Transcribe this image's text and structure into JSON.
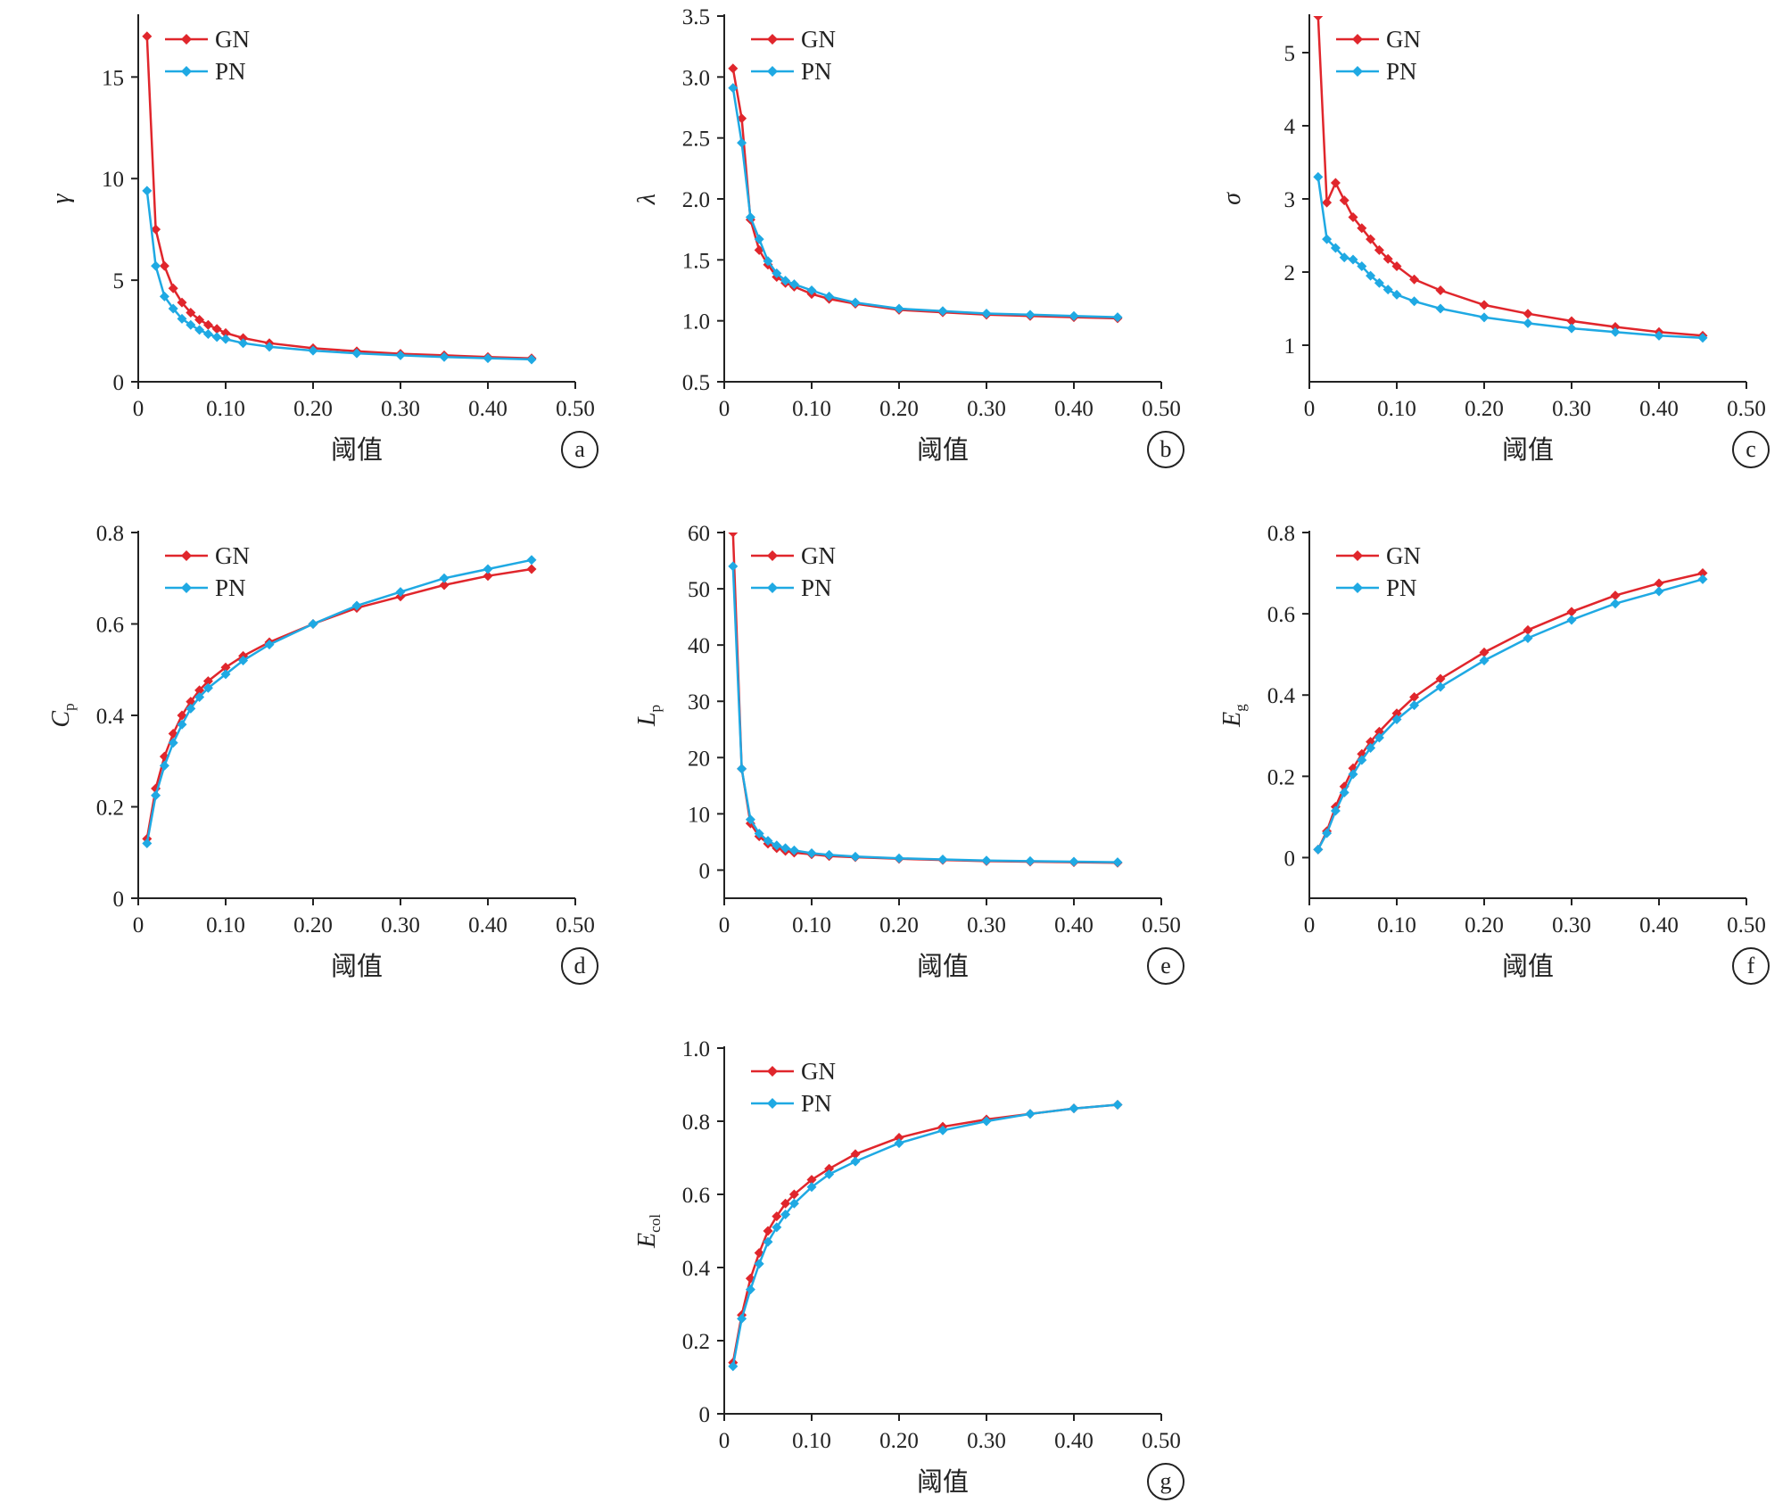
{
  "colors": {
    "GN": "#e0262c",
    "PN": "#1fa9e3",
    "axis": "#222222"
  },
  "chart_data": [
    {
      "id": "a",
      "type": "line",
      "panel_label": "a",
      "ylabel": {
        "main": "γ",
        "sub": ""
      },
      "xlabel": "阈值",
      "xlim": [
        0,
        0.5
      ],
      "ylim": [
        0,
        18
      ],
      "xticks": [
        "0",
        "0.10",
        "0.20",
        "0.30",
        "0.40",
        "0.50"
      ],
      "yticks": [
        "0",
        "5",
        "10",
        "15"
      ],
      "ytick_values": [
        0,
        5,
        10,
        15
      ],
      "series": [
        {
          "name": "GN",
          "color": "#e0262c",
          "x": [
            0.01,
            0.02,
            0.03,
            0.04,
            0.05,
            0.06,
            0.07,
            0.08,
            0.09,
            0.1,
            0.12,
            0.15,
            0.2,
            0.25,
            0.3,
            0.35,
            0.4,
            0.45
          ],
          "y": [
            17.0,
            7.5,
            5.7,
            4.6,
            3.9,
            3.4,
            3.05,
            2.8,
            2.6,
            2.4,
            2.15,
            1.9,
            1.65,
            1.5,
            1.38,
            1.3,
            1.22,
            1.15
          ]
        },
        {
          "name": "PN",
          "color": "#1fa9e3",
          "x": [
            0.01,
            0.02,
            0.03,
            0.04,
            0.05,
            0.06,
            0.07,
            0.08,
            0.09,
            0.1,
            0.12,
            0.15,
            0.2,
            0.25,
            0.3,
            0.35,
            0.4,
            0.45
          ],
          "y": [
            9.4,
            5.7,
            4.2,
            3.6,
            3.1,
            2.8,
            2.55,
            2.35,
            2.2,
            2.1,
            1.9,
            1.72,
            1.53,
            1.4,
            1.3,
            1.22,
            1.16,
            1.1
          ]
        }
      ]
    },
    {
      "id": "b",
      "type": "line",
      "panel_label": "b",
      "ylabel": {
        "main": "λ",
        "sub": ""
      },
      "xlabel": "阈值",
      "xlim": [
        0,
        0.5
      ],
      "ylim": [
        0.5,
        3.5
      ],
      "xticks": [
        "0",
        "0.10",
        "0.20",
        "0.30",
        "0.40",
        "0.50"
      ],
      "yticks": [
        "0.5",
        "1.0",
        "1.5",
        "2.0",
        "2.5",
        "3.0",
        "3.5"
      ],
      "ytick_values": [
        0.5,
        1.0,
        1.5,
        2.0,
        2.5,
        3.0,
        3.5
      ],
      "series": [
        {
          "name": "GN",
          "color": "#e0262c",
          "x": [
            0.01,
            0.02,
            0.03,
            0.04,
            0.05,
            0.06,
            0.07,
            0.08,
            0.1,
            0.12,
            0.15,
            0.2,
            0.25,
            0.3,
            0.35,
            0.4,
            0.45
          ],
          "y": [
            3.07,
            2.66,
            1.83,
            1.58,
            1.46,
            1.36,
            1.31,
            1.28,
            1.22,
            1.18,
            1.14,
            1.09,
            1.07,
            1.05,
            1.04,
            1.03,
            1.02
          ]
        },
        {
          "name": "PN",
          "color": "#1fa9e3",
          "x": [
            0.01,
            0.02,
            0.03,
            0.04,
            0.05,
            0.06,
            0.07,
            0.08,
            0.1,
            0.12,
            0.15,
            0.2,
            0.25,
            0.3,
            0.35,
            0.4,
            0.45
          ],
          "y": [
            2.91,
            2.46,
            1.85,
            1.67,
            1.49,
            1.39,
            1.33,
            1.3,
            1.25,
            1.2,
            1.15,
            1.1,
            1.08,
            1.06,
            1.05,
            1.04,
            1.03
          ]
        }
      ]
    },
    {
      "id": "c",
      "type": "line",
      "panel_label": "c",
      "ylabel": {
        "main": "σ",
        "sub": ""
      },
      "xlabel": "阈值",
      "xlim": [
        0,
        0.5
      ],
      "ylim": [
        0.5,
        5.5
      ],
      "xticks": [
        "0",
        "0.10",
        "0.20",
        "0.30",
        "0.40",
        "0.50"
      ],
      "yticks": [
        "1",
        "2",
        "3",
        "4",
        "5"
      ],
      "ytick_values": [
        1,
        2,
        3,
        4,
        5
      ],
      "series": [
        {
          "name": "GN",
          "color": "#e0262c",
          "x": [
            0.01,
            0.02,
            0.03,
            0.04,
            0.05,
            0.06,
            0.07,
            0.08,
            0.09,
            0.1,
            0.12,
            0.15,
            0.2,
            0.25,
            0.3,
            0.35,
            0.4,
            0.45
          ],
          "y": [
            5.5,
            2.95,
            3.22,
            2.98,
            2.75,
            2.6,
            2.45,
            2.3,
            2.18,
            2.08,
            1.9,
            1.75,
            1.55,
            1.43,
            1.33,
            1.25,
            1.18,
            1.13
          ]
        },
        {
          "name": "PN",
          "color": "#1fa9e3",
          "x": [
            0.01,
            0.02,
            0.03,
            0.04,
            0.05,
            0.06,
            0.07,
            0.08,
            0.09,
            0.1,
            0.12,
            0.15,
            0.2,
            0.25,
            0.3,
            0.35,
            0.4,
            0.45
          ],
          "y": [
            3.3,
            2.45,
            2.33,
            2.2,
            2.17,
            2.08,
            1.95,
            1.85,
            1.76,
            1.69,
            1.6,
            1.5,
            1.38,
            1.3,
            1.23,
            1.18,
            1.13,
            1.1
          ]
        }
      ]
    },
    {
      "id": "d",
      "type": "line",
      "panel_label": "d",
      "ylabel": {
        "main": "C",
        "sub": "p"
      },
      "xlabel": "阈值",
      "xlim": [
        0,
        0.5
      ],
      "ylim": [
        0,
        0.8
      ],
      "xticks": [
        "0",
        "0.10",
        "0.20",
        "0.30",
        "0.40",
        "0.50"
      ],
      "yticks": [
        "0",
        "0.2",
        "0.4",
        "0.6",
        "0.8"
      ],
      "ytick_values": [
        0,
        0.2,
        0.4,
        0.6,
        0.8
      ],
      "series": [
        {
          "name": "GN",
          "color": "#e0262c",
          "x": [
            0.01,
            0.02,
            0.03,
            0.04,
            0.05,
            0.06,
            0.07,
            0.08,
            0.1,
            0.12,
            0.15,
            0.2,
            0.25,
            0.3,
            0.35,
            0.4,
            0.45
          ],
          "y": [
            0.13,
            0.24,
            0.31,
            0.36,
            0.4,
            0.43,
            0.455,
            0.475,
            0.505,
            0.53,
            0.56,
            0.6,
            0.635,
            0.66,
            0.685,
            0.705,
            0.72
          ]
        },
        {
          "name": "PN",
          "color": "#1fa9e3",
          "x": [
            0.01,
            0.02,
            0.03,
            0.04,
            0.05,
            0.06,
            0.07,
            0.08,
            0.1,
            0.12,
            0.15,
            0.2,
            0.25,
            0.3,
            0.35,
            0.4,
            0.45
          ],
          "y": [
            0.12,
            0.225,
            0.29,
            0.34,
            0.38,
            0.415,
            0.44,
            0.46,
            0.49,
            0.52,
            0.555,
            0.6,
            0.64,
            0.67,
            0.7,
            0.72,
            0.74
          ]
        }
      ]
    },
    {
      "id": "e",
      "type": "line",
      "panel_label": "e",
      "ylabel": {
        "main": "L",
        "sub": "p"
      },
      "xlabel": "阈值",
      "xlim": [
        0,
        0.5
      ],
      "ylim": [
        -5,
        60
      ],
      "xticks": [
        "0",
        "0.10",
        "0.20",
        "0.30",
        "0.40",
        "0.50"
      ],
      "yticks": [
        "0",
        "10",
        "20",
        "30",
        "40",
        "50",
        "60"
      ],
      "ytick_values": [
        0,
        10,
        20,
        30,
        40,
        50,
        60
      ],
      "series": [
        {
          "name": "GN",
          "color": "#e0262c",
          "x": [
            0.01,
            0.02,
            0.03,
            0.04,
            0.05,
            0.06,
            0.07,
            0.08,
            0.1,
            0.12,
            0.15,
            0.2,
            0.25,
            0.3,
            0.35,
            0.4,
            0.45
          ],
          "y": [
            60,
            18,
            8.3,
            6,
            4.7,
            3.9,
            3.4,
            3.1,
            2.8,
            2.5,
            2.3,
            2.0,
            1.8,
            1.6,
            1.5,
            1.4,
            1.3
          ]
        },
        {
          "name": "PN",
          "color": "#1fa9e3",
          "x": [
            0.01,
            0.02,
            0.03,
            0.04,
            0.05,
            0.06,
            0.07,
            0.08,
            0.1,
            0.12,
            0.15,
            0.2,
            0.25,
            0.3,
            0.35,
            0.4,
            0.45
          ],
          "y": [
            54,
            18,
            9,
            6.5,
            5.2,
            4.4,
            3.9,
            3.5,
            3.0,
            2.7,
            2.4,
            2.1,
            1.9,
            1.7,
            1.6,
            1.5,
            1.4
          ]
        }
      ]
    },
    {
      "id": "f",
      "type": "line",
      "panel_label": "f",
      "ylabel": {
        "main": "E",
        "sub": "g"
      },
      "xlabel": "阈值",
      "xlim": [
        0,
        0.5
      ],
      "ylim": [
        -0.1,
        0.8
      ],
      "xticks": [
        "0",
        "0.10",
        "0.20",
        "0.30",
        "0.40",
        "0.50"
      ],
      "yticks": [
        "0",
        "0.2",
        "0.4",
        "0.6",
        "0.8"
      ],
      "ytick_values": [
        0,
        0.2,
        0.4,
        0.6,
        0.8
      ],
      "series": [
        {
          "name": "GN",
          "color": "#e0262c",
          "x": [
            0.01,
            0.02,
            0.03,
            0.04,
            0.05,
            0.06,
            0.07,
            0.08,
            0.1,
            0.12,
            0.15,
            0.2,
            0.25,
            0.3,
            0.35,
            0.4,
            0.45
          ],
          "y": [
            0.02,
            0.065,
            0.125,
            0.175,
            0.22,
            0.255,
            0.285,
            0.31,
            0.355,
            0.395,
            0.44,
            0.505,
            0.56,
            0.605,
            0.645,
            0.675,
            0.7
          ]
        },
        {
          "name": "PN",
          "color": "#1fa9e3",
          "x": [
            0.01,
            0.02,
            0.03,
            0.04,
            0.05,
            0.06,
            0.07,
            0.08,
            0.1,
            0.12,
            0.15,
            0.2,
            0.25,
            0.3,
            0.35,
            0.4,
            0.45
          ],
          "y": [
            0.02,
            0.06,
            0.115,
            0.16,
            0.205,
            0.24,
            0.27,
            0.295,
            0.34,
            0.375,
            0.42,
            0.485,
            0.54,
            0.585,
            0.625,
            0.655,
            0.685
          ]
        }
      ]
    },
    {
      "id": "g",
      "type": "line",
      "panel_label": "g",
      "ylabel": {
        "main": "E",
        "sub": "col"
      },
      "xlabel": "阈值",
      "xlim": [
        0,
        0.5
      ],
      "ylim": [
        0,
        1.0
      ],
      "xticks": [
        "0",
        "0.10",
        "0.20",
        "0.30",
        "0.40",
        "0.50"
      ],
      "yticks": [
        "0",
        "0.2",
        "0.4",
        "0.6",
        "0.8",
        "1.0"
      ],
      "ytick_values": [
        0,
        0.2,
        0.4,
        0.6,
        0.8,
        1.0
      ],
      "series": [
        {
          "name": "GN",
          "color": "#e0262c",
          "x": [
            0.01,
            0.02,
            0.03,
            0.04,
            0.05,
            0.06,
            0.07,
            0.08,
            0.1,
            0.12,
            0.15,
            0.2,
            0.25,
            0.3,
            0.35,
            0.4,
            0.45
          ],
          "y": [
            0.14,
            0.27,
            0.37,
            0.44,
            0.5,
            0.54,
            0.575,
            0.6,
            0.64,
            0.67,
            0.71,
            0.755,
            0.785,
            0.805,
            0.82,
            0.835,
            0.845
          ]
        },
        {
          "name": "PN",
          "color": "#1fa9e3",
          "x": [
            0.01,
            0.02,
            0.03,
            0.04,
            0.05,
            0.06,
            0.07,
            0.08,
            0.1,
            0.12,
            0.15,
            0.2,
            0.25,
            0.3,
            0.35,
            0.4,
            0.45
          ],
          "y": [
            0.13,
            0.26,
            0.34,
            0.41,
            0.47,
            0.51,
            0.545,
            0.575,
            0.62,
            0.655,
            0.69,
            0.74,
            0.775,
            0.8,
            0.82,
            0.835,
            0.845
          ]
        }
      ]
    }
  ]
}
